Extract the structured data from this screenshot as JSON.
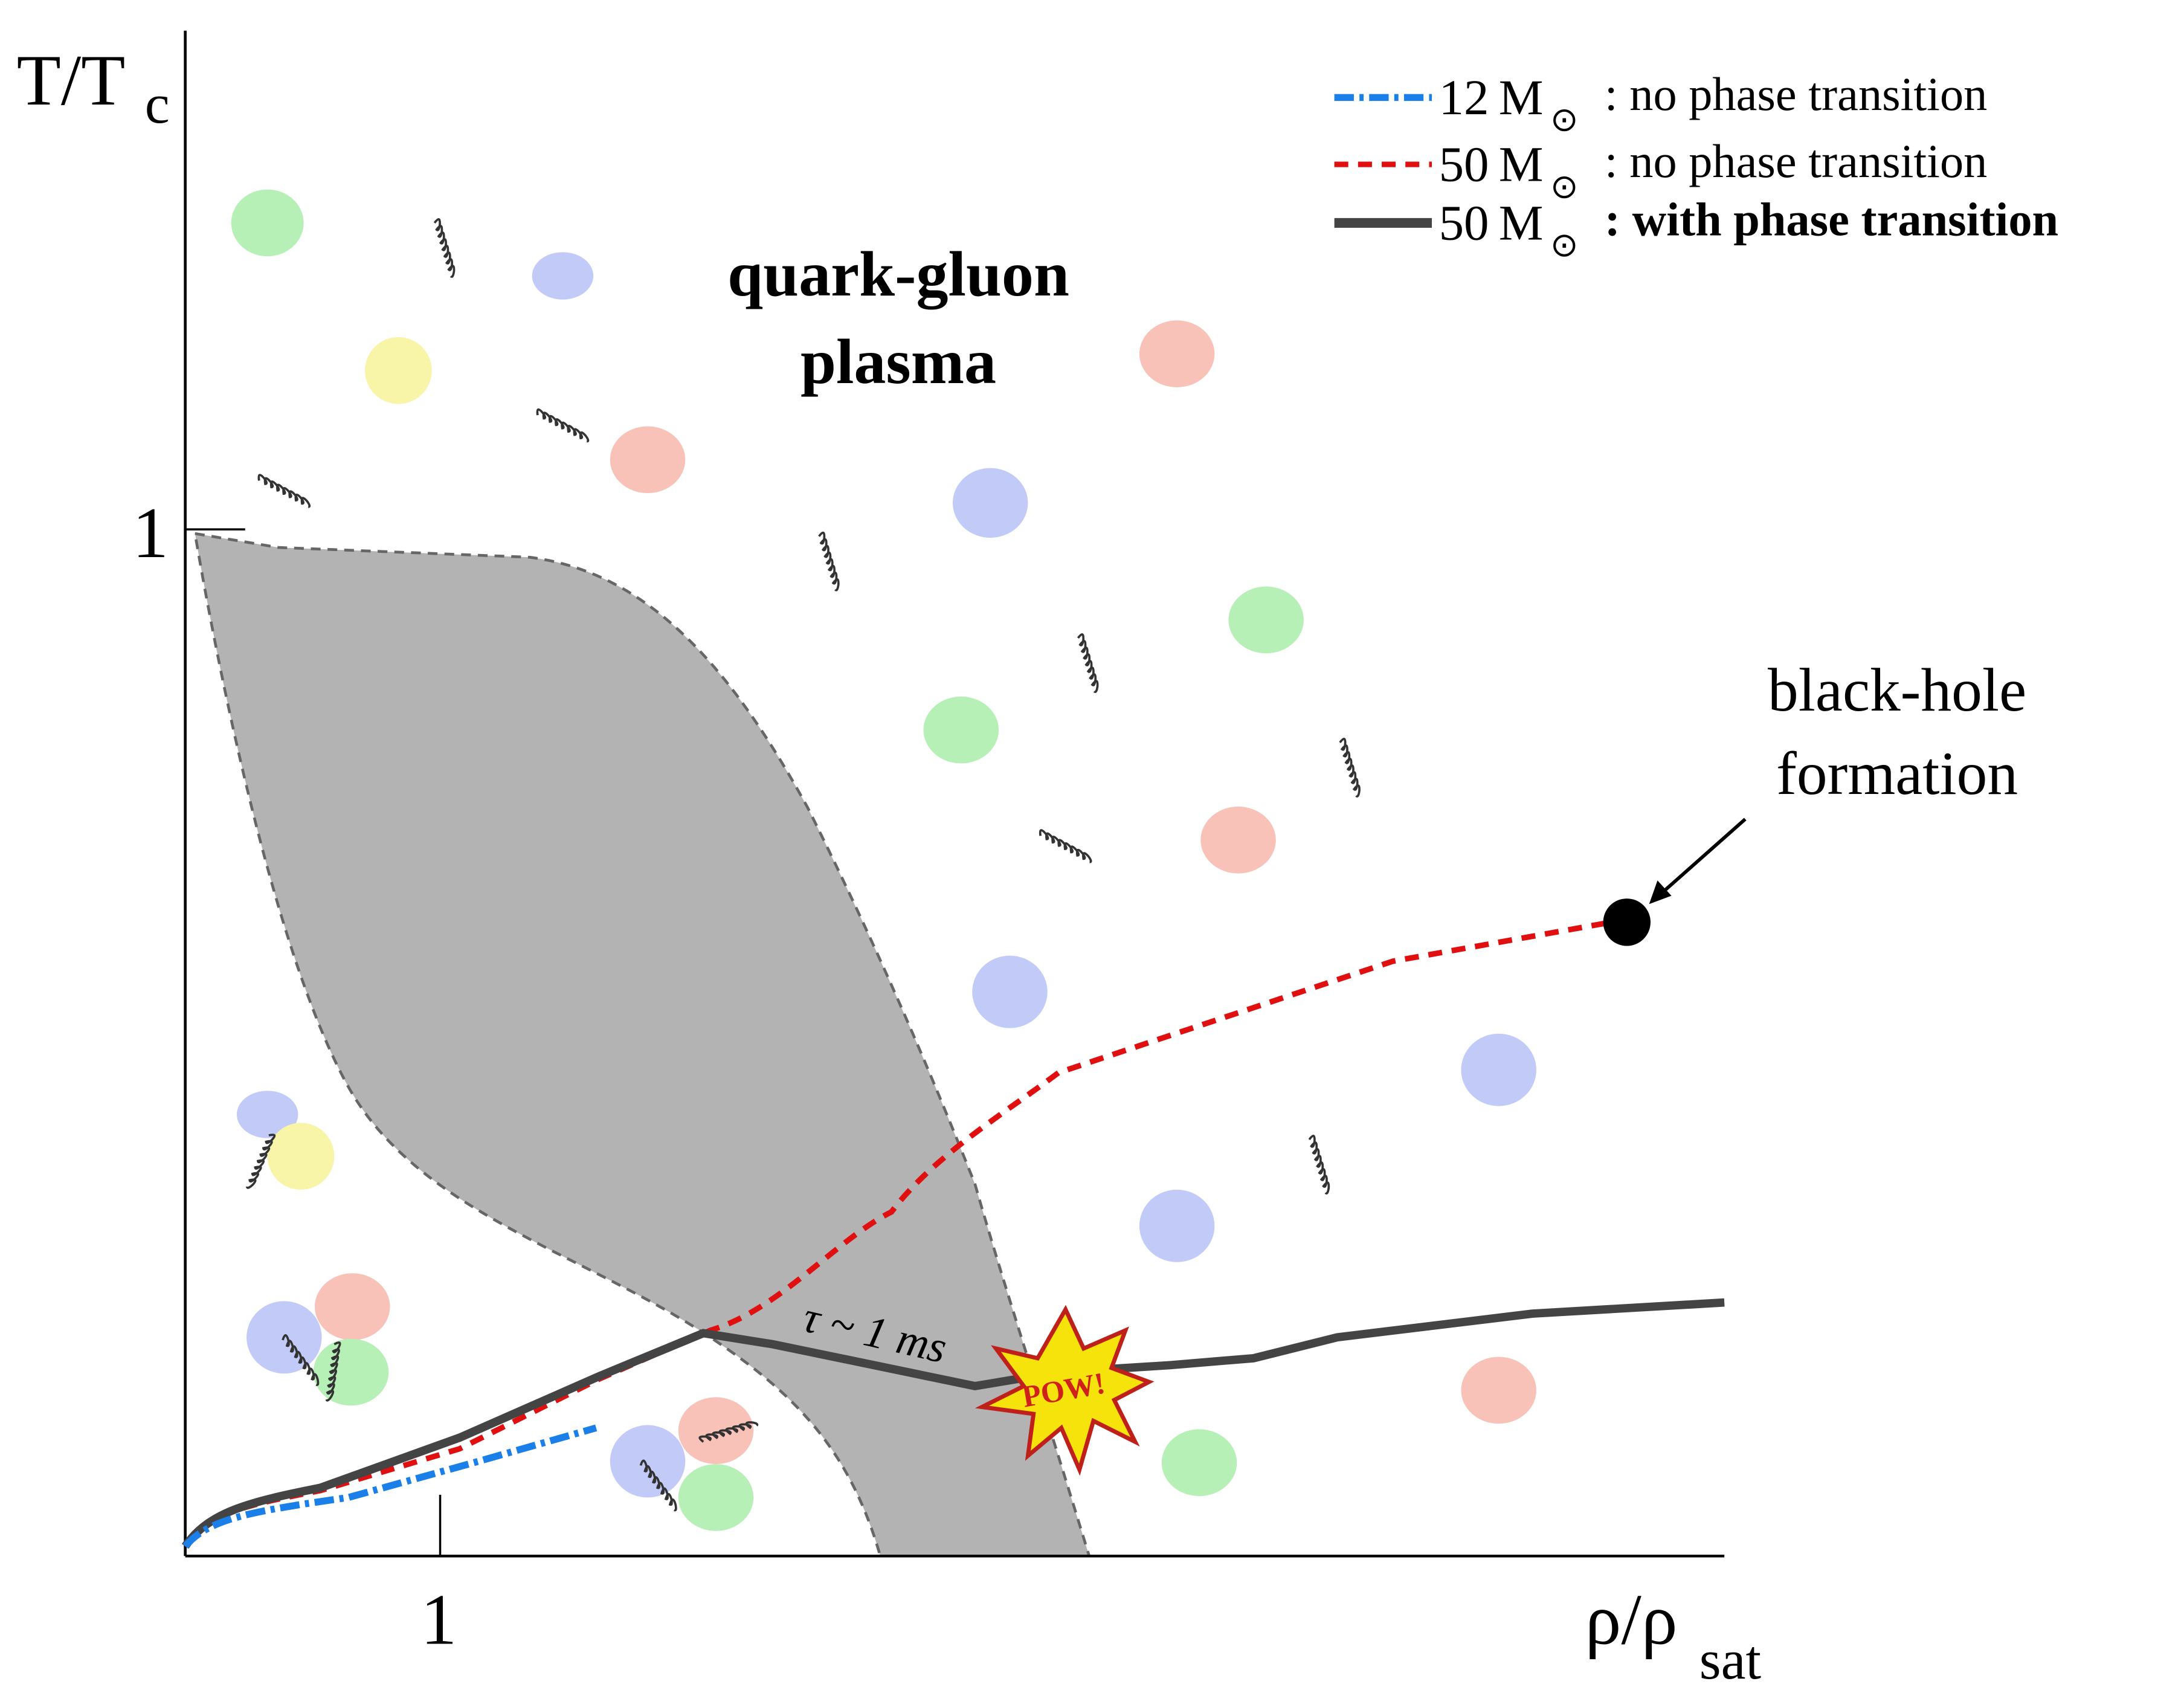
{
  "axes": {
    "y_label": "T/T",
    "y_label_sub": "c",
    "y_tick": "1",
    "x_label": "ρ/ρ",
    "x_label_sub": "sat",
    "x_tick": "1"
  },
  "legend": [
    {
      "mass": "12",
      "unit": "M",
      "symbol": "⊙",
      "text": ": no phase transition"
    },
    {
      "mass": "50",
      "unit": "M",
      "symbol": "⊙",
      "text": ": no phase transition"
    },
    {
      "mass": "50",
      "unit": "M",
      "symbol": "⊙",
      "text": ": with phase transition"
    }
  ],
  "region": {
    "line1": "quark-gluon",
    "line2": "plasma"
  },
  "annotations": {
    "black_hole_1": "black-hole",
    "black_hole_2": "formation",
    "tau": "τ ~ 1 ms",
    "pow": "POW!"
  }
}
